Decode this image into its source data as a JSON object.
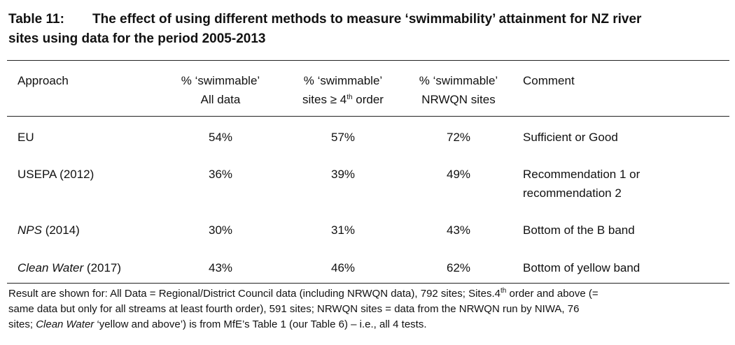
{
  "title": {
    "label": "Table 11:",
    "text_line1": "The effect of using different methods to measure ‘swimmability’ attainment for NZ river",
    "text_line2": "sites using data for the period 2005-2013"
  },
  "headers": {
    "approach": "Approach",
    "all_data_l1": "% ‘swimmable’",
    "all_data_l2": "All data",
    "order_l1": "% ‘swimmable’",
    "order_l2a": "sites ≥ 4",
    "order_sup": "th",
    "order_l2b": " order",
    "nrwqn_l1": "% ‘swimmable’",
    "nrwqn_l2": "NRWQN sites",
    "comment": "Comment"
  },
  "rows": [
    {
      "approach": "EU",
      "approach_suffix": "",
      "all": "54%",
      "order": "57%",
      "nrwqn": "72%",
      "comment_l1": "Sufficient or Good",
      "comment_l2": ""
    },
    {
      "approach": "USEPA (2012)",
      "approach_suffix": "",
      "all": "36%",
      "order": "39%",
      "nrwqn": "49%",
      "comment_l1": "Recommendation 1 or",
      "comment_l2": "recommendation 2"
    },
    {
      "approach": "NPS",
      "approach_suffix": " (2014)",
      "all": "30%",
      "order": "31%",
      "nrwqn": "43%",
      "comment_l1": "Bottom of the B band",
      "comment_l2": ""
    },
    {
      "approach": "Clean Water",
      "approach_suffix": " (2017)",
      "all": "43%",
      "order": "46%",
      "nrwqn": "62%",
      "comment_l1": "Bottom of yellow band",
      "comment_l2": ""
    }
  ],
  "footnote": {
    "l1": "Result are shown for: All Data = Regional/District Council data (including NRWQN data), 792 sites; Sites.4",
    "l1_sup": "th",
    "l1_end": " order and above (=",
    "l2": "same data but only for all streams at least fourth order), 591 sites; NRWQN sites = data from the NRWQN run by NIWA, 76",
    "l3_start": "sites; ",
    "l3_italic": "Clean Water",
    "l3_end": " ‘yellow and above’) is from MfE’s Table 1 (our Table 6) – i.e., all 4 tests."
  }
}
